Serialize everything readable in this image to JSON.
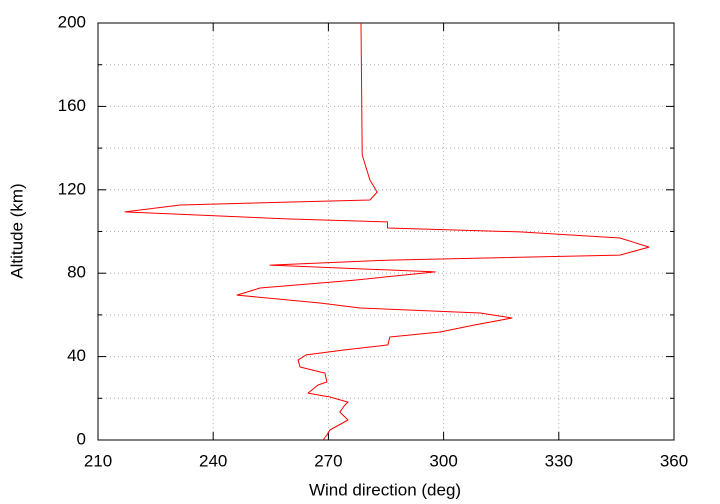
{
  "chart_data": {
    "type": "line",
    "xlabel": "Wind direction (deg)",
    "ylabel": "Altitude (km)",
    "xlim": [
      210,
      360
    ],
    "xticks": [
      210,
      240,
      270,
      300,
      330,
      360
    ],
    "ylim": [
      0,
      200
    ],
    "yticks": [
      0,
      40,
      80,
      120,
      160,
      200
    ],
    "yminorticks": [
      20,
      60,
      100,
      140,
      180
    ],
    "grid": true,
    "series": [
      {
        "color": "#ff0000",
        "x": [
          268.6,
          269.6,
          270.4,
          275.1,
          273,
          274.3,
          275.1,
          270.4,
          264.7,
          267.3,
          269.6,
          269.1,
          262.6,
          262.1,
          264.2,
          274.3,
          285.5,
          286,
          299.1,
          308.2,
          317.8,
          309.5,
          278.2,
          267.8,
          246.2,
          252.2,
          276.9,
          297.8,
          254.8,
          286,
          345.9,
          353.5,
          345.9,
          319.9,
          285.4,
          285.4,
          260,
          217,
          231.4,
          280.8,
          282.7,
          280.8,
          278.8,
          278.5
        ],
        "y": [
          0,
          2.4,
          4.8,
          9.6,
          13.4,
          16.8,
          18.2,
          20.6,
          22.5,
          26.4,
          27.8,
          32.1,
          35,
          38.4,
          40.8,
          43.2,
          45.6,
          49.4,
          51.8,
          55.2,
          58.5,
          60.9,
          63.3,
          65.7,
          69.5,
          72.9,
          76.7,
          80.6,
          83.9,
          86.3,
          88.7,
          92.5,
          96.9,
          99.8,
          101.7,
          104.6,
          106,
          109.4,
          112.7,
          115.1,
          118.9,
          124.7,
          136.7,
          200
        ]
      }
    ]
  }
}
